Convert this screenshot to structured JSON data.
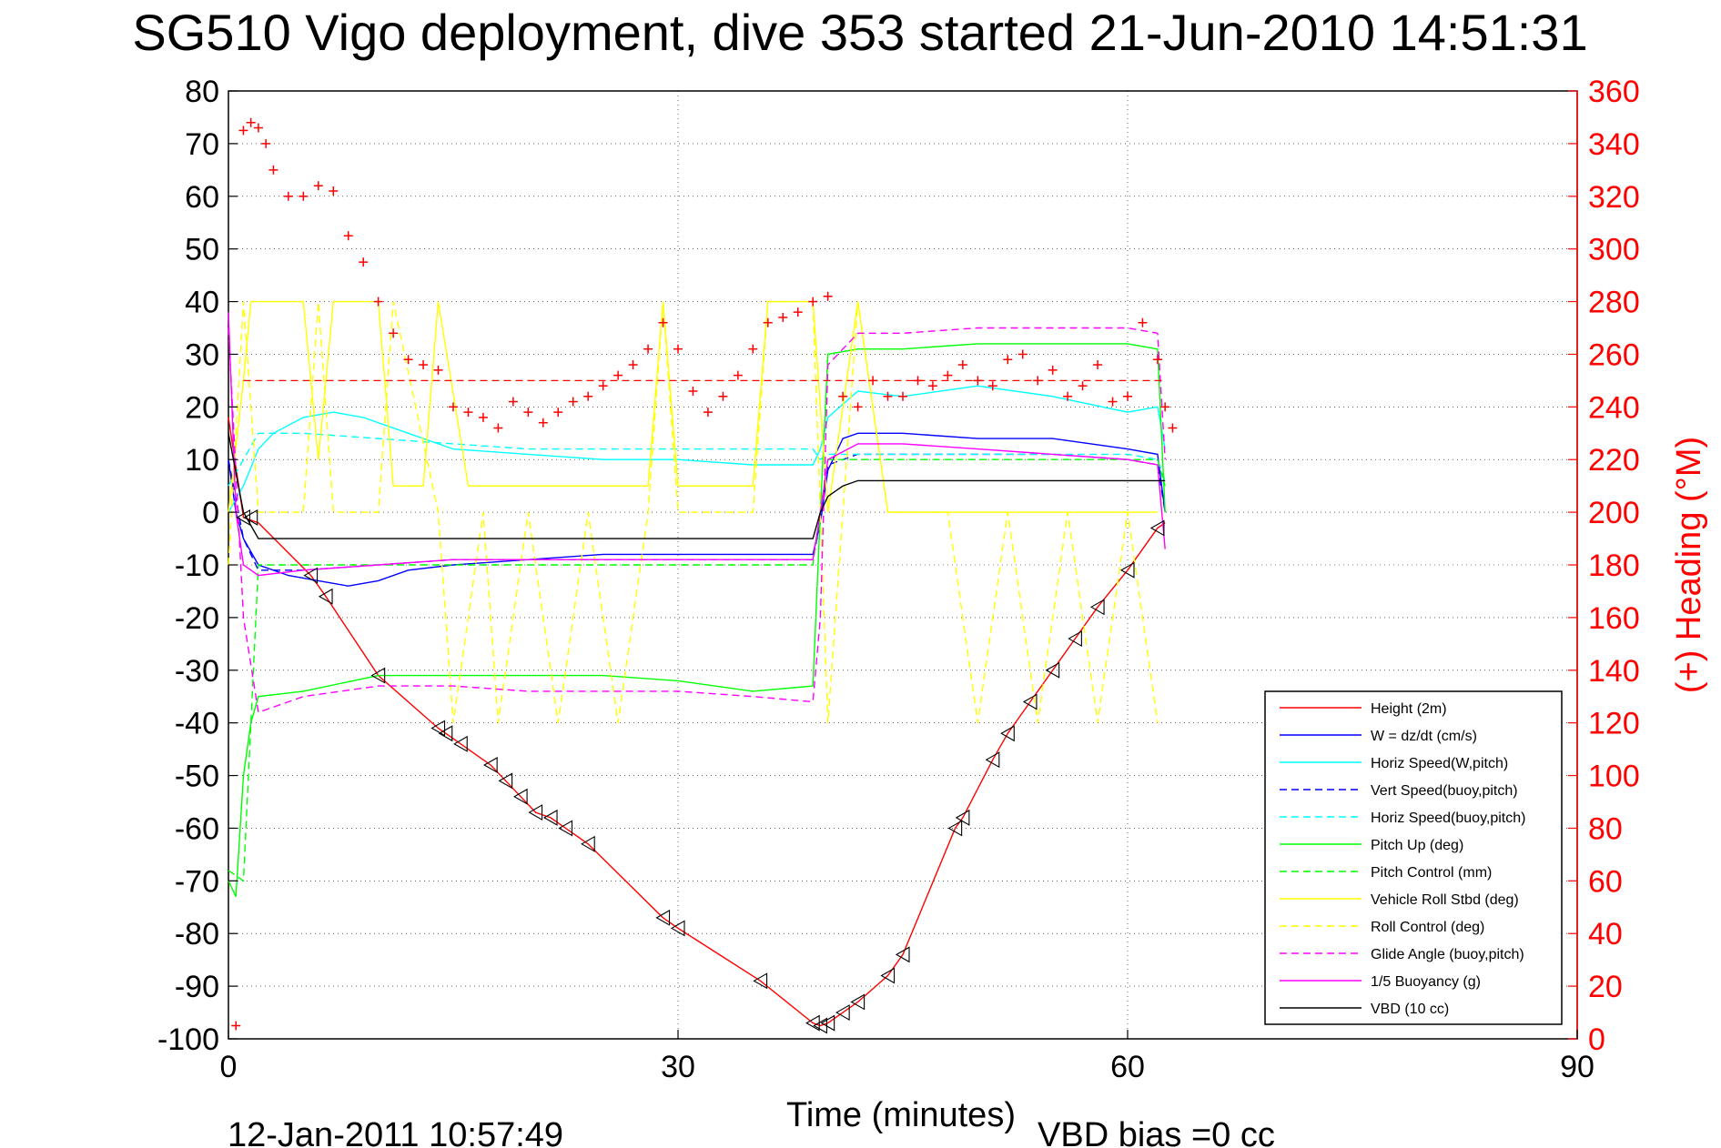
{
  "title": "SG510 Vigo deployment, dive 353 started 21-Jun-2010 14:51:31",
  "footer": {
    "timestamp": "12-Jan-2011 10:57:49",
    "vbd_bias": "VBD bias =0 cc"
  },
  "chart_data": {
    "type": "line",
    "xlabel": "Time (minutes)",
    "ylabel_left": "",
    "ylabel_right": "(+) Heading (°M)",
    "xlim": [
      0,
      90
    ],
    "ylim": [
      -100,
      80
    ],
    "y2lim": [
      0,
      360
    ],
    "xticks": [
      0,
      30,
      60,
      90
    ],
    "yticks": [
      80,
      70,
      60,
      50,
      40,
      30,
      20,
      10,
      0,
      -10,
      -20,
      -30,
      -40,
      -50,
      -60,
      -70,
      -80,
      -90,
      -100
    ],
    "y2ticks": [
      360,
      340,
      320,
      300,
      280,
      260,
      240,
      220,
      200,
      180,
      160,
      140,
      120,
      100,
      80,
      60,
      40,
      20,
      0
    ],
    "grid": true,
    "legend_position": "bottom-right",
    "series": [
      {
        "name": "Height (2m)",
        "color": "#ff0000",
        "style": "solid",
        "x": [
          0,
          1,
          2,
          5.5,
          6.5,
          10,
          14,
          14.5,
          15.5,
          17.5,
          18.5,
          19.5,
          20.5,
          21.5,
          22.5,
          24,
          29,
          30,
          35.5,
          39,
          39.5,
          40,
          41,
          42,
          44,
          45,
          48.5,
          49,
          51,
          52,
          53.5,
          55,
          56.5,
          58,
          60,
          62,
          62.5
        ],
        "values": [
          18,
          -1,
          -2,
          -12,
          -16,
          -31,
          -41,
          -42,
          -44,
          -48,
          -51,
          -54,
          -57,
          -58,
          -60,
          -63,
          -77,
          -79,
          -89,
          -97,
          -97.5,
          -97,
          -95,
          -93,
          -88,
          -84,
          -60,
          -58,
          -47,
          -42,
          -36,
          -30,
          -24,
          -18,
          -11,
          -3,
          -2
        ]
      },
      {
        "name": "W = dz/dt (cm/s)",
        "color": "#0000ff",
        "style": "solid",
        "x": [
          0,
          0.5,
          1,
          2,
          4,
          6,
          8,
          10,
          12,
          15,
          20,
          25,
          30,
          35,
          39,
          39.5,
          40,
          41,
          42,
          45,
          50,
          55,
          60,
          62,
          62.5
        ],
        "values": [
          10,
          0,
          -5,
          -10,
          -12,
          -13,
          -14,
          -13,
          -11,
          -10,
          -9,
          -8,
          -8,
          -8,
          -8,
          -2,
          8,
          14,
          15,
          15,
          14,
          14,
          12,
          11,
          0
        ]
      },
      {
        "name": "Horiz Speed(W,pitch)",
        "color": "#00ffff",
        "style": "solid",
        "x": [
          0,
          1,
          2,
          3,
          5,
          7,
          9,
          12,
          15,
          20,
          25,
          30,
          35,
          39,
          39.5,
          40,
          42,
          45,
          50,
          55,
          60,
          62,
          62.5
        ],
        "values": [
          0,
          5,
          12,
          15,
          18,
          19,
          18,
          15,
          12,
          11,
          10,
          10,
          9,
          9,
          12,
          18,
          23,
          22,
          24,
          22,
          19,
          20,
          12
        ]
      },
      {
        "name": "Vert Speed(buoy,pitch)",
        "color": "#0000ff",
        "style": "dashed",
        "x": [
          0,
          1,
          2,
          5,
          10,
          15,
          20,
          25,
          30,
          35,
          39,
          39.5,
          40,
          42,
          45,
          50,
          55,
          60,
          62,
          62.5
        ],
        "values": [
          10,
          -5,
          -11,
          -11,
          -10,
          -9,
          -9,
          -9,
          -9,
          -9,
          -9,
          -2,
          9,
          11,
          11,
          11,
          11,
          10,
          9,
          0
        ]
      },
      {
        "name": "Horiz Speed(buoy,pitch)",
        "color": "#00ffff",
        "style": "dashed",
        "x": [
          0,
          1,
          2,
          5,
          10,
          15,
          20,
          25,
          30,
          35,
          39,
          39.5,
          40,
          42,
          45,
          50,
          55,
          60,
          62,
          62.5
        ],
        "values": [
          5,
          10,
          15,
          15,
          14,
          13,
          12,
          12,
          12,
          12,
          12,
          10,
          11,
          11,
          11,
          11,
          11,
          11,
          10,
          6
        ]
      },
      {
        "name": "Pitch Up (deg)",
        "color": "#00ff00",
        "style": "solid",
        "x": [
          0,
          0.5,
          1,
          1.5,
          2,
          5,
          10,
          15,
          20,
          25,
          30,
          35,
          39,
          39.5,
          40,
          42,
          45,
          50,
          55,
          60,
          62,
          62.5
        ],
        "values": [
          -70,
          -73,
          -50,
          -40,
          -35,
          -34,
          -31,
          -31,
          -31,
          -31,
          -32,
          -34,
          -33,
          0,
          30,
          31,
          31,
          32,
          32,
          32,
          31,
          0
        ]
      },
      {
        "name": "Pitch Control (mm)",
        "color": "#00ff00",
        "style": "dashed",
        "x": [
          0,
          1,
          2,
          5,
          10,
          15,
          20,
          25,
          30,
          35,
          39,
          39.5,
          40,
          45,
          50,
          55,
          60,
          62,
          62.5
        ],
        "values": [
          -68,
          -70,
          -10,
          -10,
          -10,
          -10,
          -10,
          -10,
          -10,
          -10,
          -10,
          0,
          10,
          10,
          10,
          10,
          10,
          10,
          5
        ]
      },
      {
        "name": "Vehicle Roll Stbd (deg)",
        "color": "#ffff00",
        "style": "solid",
        "x": [
          0,
          1,
          1.5,
          3,
          5,
          6,
          7,
          10,
          11,
          13,
          14,
          16,
          18,
          20,
          22,
          24,
          26,
          28,
          29,
          30,
          32,
          35,
          36,
          39,
          40,
          42,
          44,
          46,
          48,
          50,
          52,
          54,
          56,
          58,
          60,
          62
        ],
        "values": [
          0,
          25,
          40,
          40,
          40,
          10,
          40,
          40,
          5,
          5,
          40,
          5,
          5,
          5,
          5,
          5,
          5,
          5,
          40,
          5,
          5,
          5,
          40,
          40,
          0,
          40,
          0,
          0,
          0,
          0,
          0,
          0,
          0,
          0,
          0,
          0
        ]
      },
      {
        "name": "Roll Control (deg)",
        "color": "#ffff00",
        "style": "dashed",
        "x": [
          0,
          1,
          2,
          5,
          6,
          7,
          10,
          11,
          14,
          15,
          17,
          18,
          20,
          22,
          24,
          26,
          28,
          29,
          30,
          35,
          36,
          39,
          40,
          42,
          44,
          48,
          50,
          52,
          54,
          56,
          58,
          60,
          62
        ],
        "values": [
          -10,
          40,
          0,
          0,
          40,
          0,
          0,
          40,
          0,
          -40,
          0,
          -40,
          0,
          -40,
          0,
          -40,
          0,
          40,
          0,
          0,
          40,
          40,
          -40,
          40,
          0,
          0,
          -40,
          0,
          -40,
          0,
          -40,
          0,
          -40
        ]
      },
      {
        "name": "Glide Angle (buoy,pitch)",
        "color": "#ff00ff",
        "style": "dashed",
        "x": [
          0,
          1,
          2,
          5,
          10,
          15,
          20,
          25,
          30,
          35,
          39,
          39.5,
          40,
          42,
          45,
          50,
          55,
          60,
          62,
          62.5
        ],
        "values": [
          35,
          -20,
          -38,
          -35,
          -33,
          -33,
          -34,
          -34,
          -34,
          -35,
          -36,
          -20,
          28,
          34,
          34,
          35,
          35,
          35,
          34,
          10
        ]
      },
      {
        "name": "1/5 Buoyancy (g)",
        "color": "#ff00ff",
        "style": "solid",
        "x": [
          0,
          0.5,
          1,
          2,
          5,
          10,
          15,
          20,
          25,
          30,
          35,
          39,
          39.5,
          40,
          42,
          45,
          50,
          55,
          60,
          62,
          62.5
        ],
        "values": [
          38,
          0,
          -10,
          -12,
          -11,
          -10,
          -9,
          -9,
          -9,
          -9,
          -9,
          -9,
          0,
          10,
          13,
          13,
          12,
          11,
          10,
          9,
          -7
        ]
      },
      {
        "name": "VBD (10 cc)",
        "color": "#000000",
        "style": "solid",
        "x": [
          0,
          1,
          2,
          5,
          10,
          20,
          30,
          39,
          39.5,
          40,
          41,
          42,
          45,
          50,
          55,
          60,
          62.5
        ],
        "values": [
          15,
          0,
          -5,
          -5,
          -5,
          -5,
          -5,
          -5,
          0,
          3,
          5,
          6,
          6,
          6,
          6,
          6,
          6
        ]
      }
    ],
    "heading": {
      "name": "Heading",
      "color": "#ff0000",
      "marker": "+",
      "x": [
        0.5,
        1,
        1.5,
        2,
        2.5,
        3,
        4,
        5,
        6,
        7,
        8,
        9,
        10,
        11,
        12,
        13,
        14,
        15,
        16,
        17,
        18,
        19,
        20,
        21,
        22,
        23,
        24,
        25,
        26,
        27,
        28,
        29,
        30,
        31,
        32,
        33,
        34,
        35,
        36,
        37,
        38,
        39,
        40,
        41,
        42,
        43,
        44,
        45,
        46,
        47,
        48,
        49,
        50,
        51,
        52,
        53,
        54,
        55,
        56,
        57,
        58,
        59,
        60,
        61,
        62,
        62.5,
        63
      ],
      "values": [
        5,
        345,
        348,
        346,
        340,
        330,
        320,
        320,
        324,
        322,
        305,
        295,
        280,
        268,
        258,
        256,
        254,
        240,
        238,
        236,
        232,
        242,
        238,
        234,
        238,
        242,
        244,
        248,
        252,
        256,
        262,
        272,
        262,
        246,
        238,
        244,
        252,
        262,
        272,
        274,
        276,
        280,
        282,
        244,
        240,
        250,
        244,
        244,
        250,
        248,
        252,
        256,
        250,
        248,
        258,
        260,
        250,
        254,
        244,
        248,
        256,
        242,
        244,
        272,
        258,
        240,
        232
      ]
    },
    "heading_ref": {
      "name": "Heading reference",
      "color": "#ff0000",
      "style": "dashed",
      "value": 250
    },
    "markers": {
      "name": "Height markers",
      "color": "#000000",
      "marker": "triangle-left",
      "x": [
        1,
        1.5,
        5.5,
        6.5,
        10,
        14,
        14.5,
        15.5,
        17.5,
        18.5,
        19.5,
        20.5,
        21.5,
        22.5,
        24,
        29,
        30,
        35.5,
        39,
        39.5,
        40,
        41,
        42,
        44,
        45,
        48.5,
        49,
        51,
        52,
        53.5,
        55,
        56.5,
        58,
        60,
        62
      ],
      "values": [
        -1,
        -1,
        -12,
        -16,
        -31,
        -41,
        -42,
        -44,
        -48,
        -51,
        -54,
        -57,
        -58,
        -60,
        -63,
        -77,
        -79,
        -89,
        -97,
        -97.5,
        -97,
        -95,
        -93,
        -88,
        -84,
        -60,
        -58,
        -47,
        -42,
        -36,
        -30,
        -24,
        -18,
        -11,
        -3
      ]
    }
  }
}
